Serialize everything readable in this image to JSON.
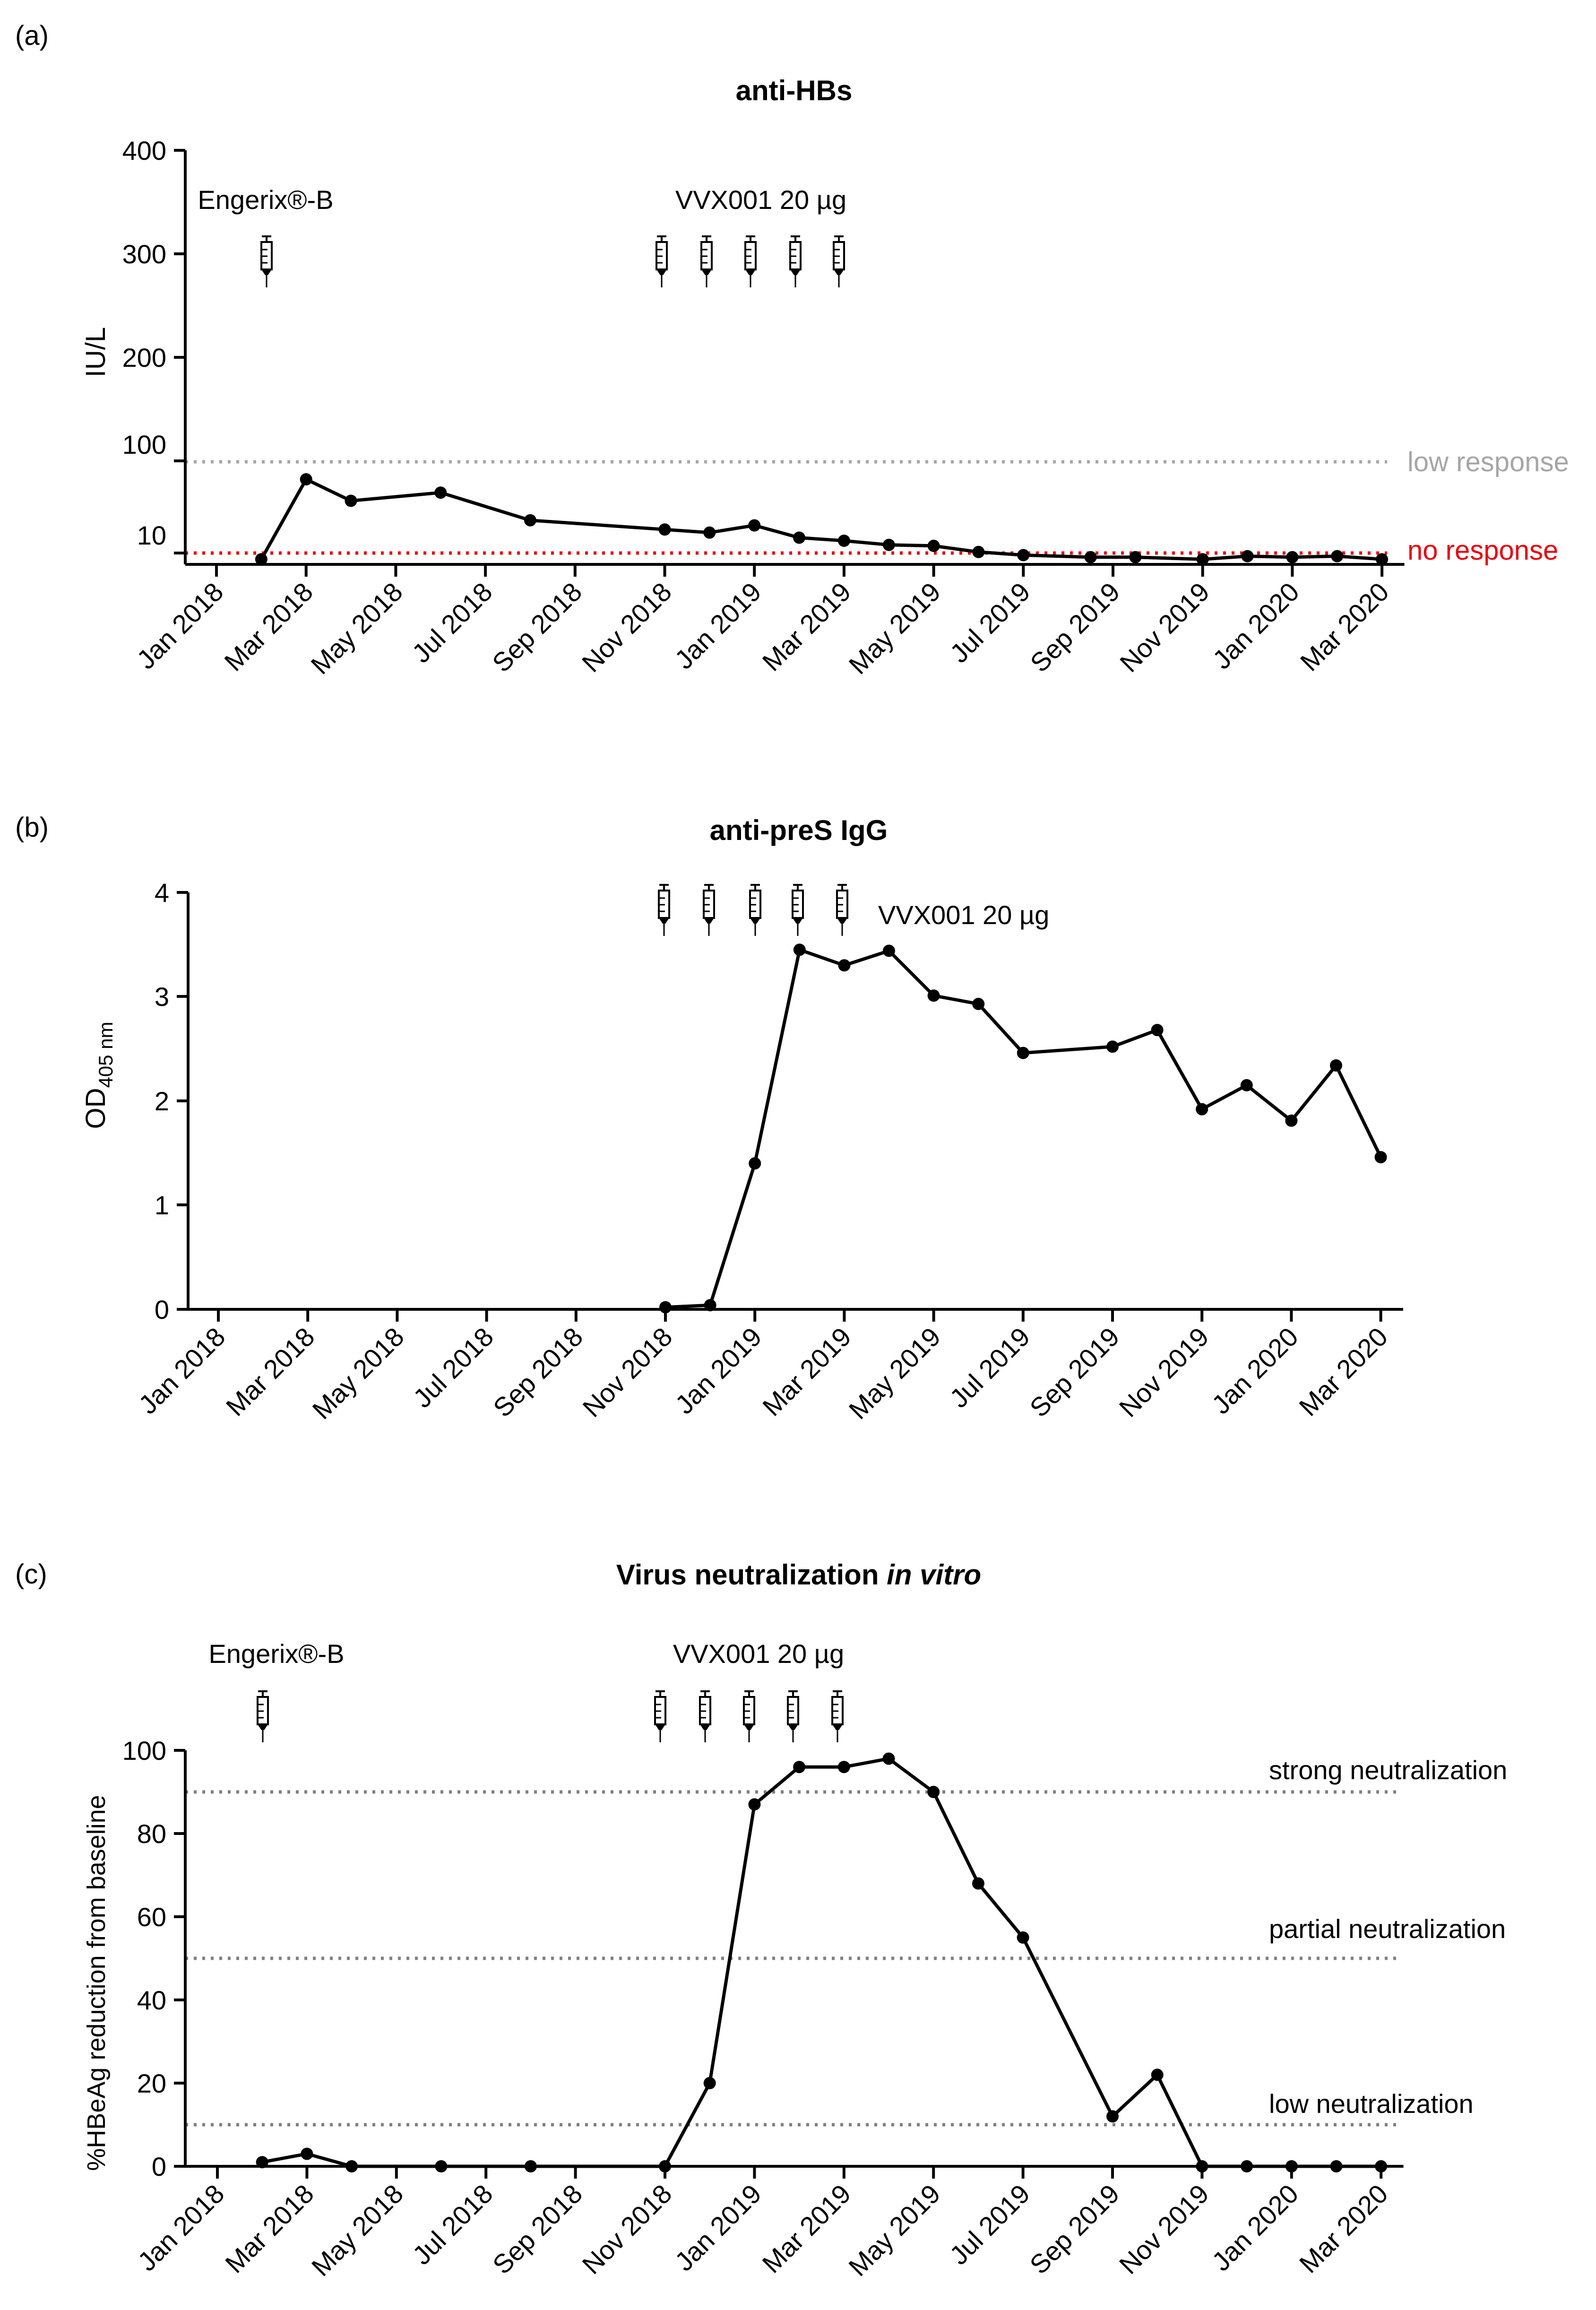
{
  "figure": {
    "panel_labels": [
      "(a)",
      "(b)",
      "(c)"
    ],
    "x_tick_labels": [
      "Jan 2018",
      "Mar 2018",
      "May 2018",
      "Jul 2018",
      "Sep 2018",
      "Nov 2018",
      "Jan 2019",
      "Mar 2019",
      "May 2019",
      "Jul 2019",
      "Sep 2019",
      "Nov 2019",
      "Jan 2020",
      "Mar 2020"
    ],
    "colors": {
      "line": "#000000",
      "low_response": "#a6a6a6",
      "no_response": "#e8000b",
      "threshold": "#7f7f7f"
    }
  },
  "chart_data": [
    {
      "id": "a",
      "type": "line",
      "title": "anti-HBs",
      "xlabel": "",
      "ylabel": "IU/L",
      "yticks": [
        "10",
        "100",
        "200",
        "300",
        "400"
      ],
      "xlim_months": [
        0,
        26.5
      ],
      "series": [
        {
          "name": "anti-HBs",
          "x_months": [
            1,
            2,
            3,
            5,
            7,
            10,
            11,
            12,
            13,
            14,
            15,
            16,
            17,
            18,
            19.5,
            20.5,
            22,
            23,
            24,
            25,
            26
          ],
          "values": [
            4,
            82,
            61,
            69,
            42,
            33,
            30,
            37,
            25,
            22,
            18,
            17,
            11,
            8,
            6,
            6,
            4,
            7,
            6,
            7,
            4
          ]
        }
      ],
      "reference_lines": [
        {
          "label": "low response",
          "value": 100,
          "color": "#a6a6a6"
        },
        {
          "label": "no response",
          "value": 10,
          "color": "#e8000b"
        }
      ],
      "annotations": [
        {
          "text": "Engerix®-B",
          "injections_x_months": [
            1
          ]
        },
        {
          "text": "VVX001 20 µg",
          "injections_x_months": [
            10,
            11,
            12,
            13,
            14
          ]
        }
      ]
    },
    {
      "id": "b",
      "type": "line",
      "title": "anti-preS IgG",
      "xlabel": "",
      "ylabel": "OD",
      "ylabel_subscript": "405 nm",
      "yticks": [
        "0",
        "1",
        "2",
        "3",
        "4"
      ],
      "ylim": [
        0,
        4
      ],
      "xlim_months": [
        0,
        26.5
      ],
      "series": [
        {
          "name": "anti-preS IgG",
          "x_months": [
            10,
            11,
            12,
            13,
            14,
            15,
            16,
            17,
            18,
            20,
            21,
            22,
            23,
            24,
            25,
            26
          ],
          "values": [
            0.02,
            0.04,
            1.4,
            3.45,
            3.3,
            3.44,
            3.01,
            2.93,
            2.46,
            2.52,
            2.68,
            1.92,
            2.15,
            1.81,
            2.34,
            1.46
          ]
        }
      ],
      "annotations": [
        {
          "text": "VVX001 20 µg",
          "injections_x_months": [
            10,
            11,
            12,
            13,
            14
          ]
        }
      ]
    },
    {
      "id": "c",
      "type": "line",
      "title": "Virus neutralization",
      "title_italic": "in vitro",
      "xlabel": "",
      "ylabel": "%HBeAg reduction from baseline",
      "yticks": [
        "0",
        "20",
        "40",
        "60",
        "80",
        "100"
      ],
      "ylim": [
        0,
        100
      ],
      "xlim_months": [
        0,
        26.5
      ],
      "series": [
        {
          "name": "HBeAg reduction",
          "x_months": [
            1,
            2,
            3,
            5,
            7,
            10,
            11,
            12,
            13,
            14,
            15,
            16,
            17,
            18,
            20,
            21,
            22,
            23,
            24,
            25,
            26
          ],
          "values": [
            1,
            3,
            0,
            0,
            0,
            0,
            20,
            87,
            96,
            96,
            98,
            90,
            68,
            55,
            12,
            22,
            0,
            0,
            0,
            0,
            0
          ]
        }
      ],
      "reference_lines": [
        {
          "label": "strong neutralization",
          "value": 90,
          "color": "#7f7f7f"
        },
        {
          "label": "partial neutralization",
          "value": 50,
          "color": "#7f7f7f"
        },
        {
          "label": "low neutralization",
          "value": 10,
          "color": "#7f7f7f"
        }
      ],
      "annotations": [
        {
          "text": "Engerix®-B",
          "injections_x_months": [
            1
          ]
        },
        {
          "text": "VVX001 20 µg",
          "injections_x_months": [
            10,
            11,
            12,
            13,
            14
          ]
        }
      ]
    }
  ]
}
